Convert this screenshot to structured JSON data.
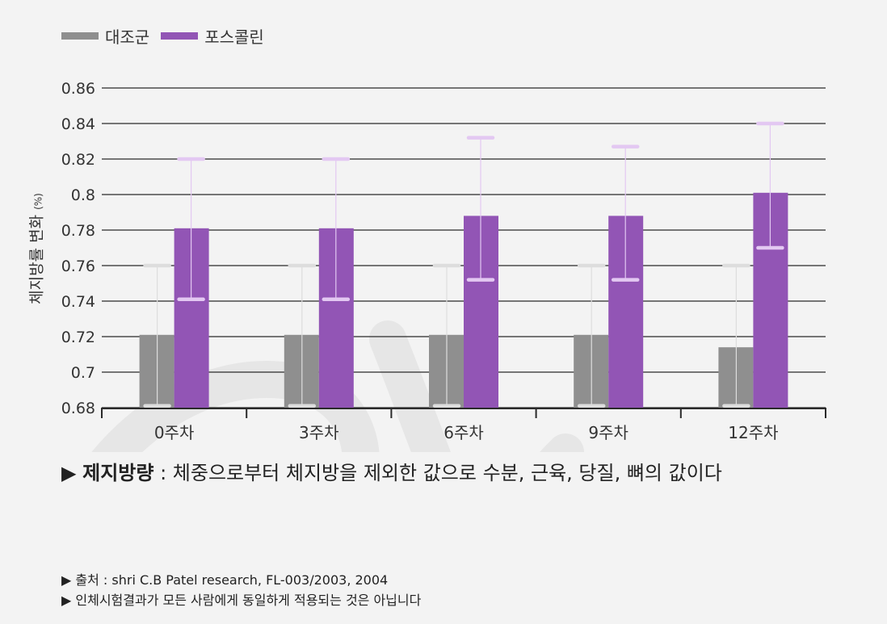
{
  "chart_data": {
    "type": "bar",
    "categories": [
      "0주차",
      "3주차",
      "6주차",
      "9주차",
      "12주차"
    ],
    "series": [
      {
        "name": "대조군",
        "color": "#8f8f8f",
        "errorColor": "#dddddd",
        "values": [
          0.721,
          0.721,
          0.721,
          0.721,
          0.714
        ],
        "error_low": [
          0.681,
          0.681,
          0.681,
          0.681,
          0.681
        ],
        "error_high": [
          0.76,
          0.76,
          0.76,
          0.76,
          0.76
        ]
      },
      {
        "name": "포스콜린",
        "color": "#9255b5",
        "errorColor": "#e3c8f2",
        "values": [
          0.781,
          0.781,
          0.788,
          0.788,
          0.801
        ],
        "error_low": [
          0.741,
          0.741,
          0.752,
          0.752,
          0.77
        ],
        "error_high": [
          0.82,
          0.82,
          0.832,
          0.827,
          0.84
        ]
      }
    ],
    "ylabel": "체지방률 변화",
    "ylabel_unit": "(%)",
    "ylim": [
      0.68,
      0.86
    ],
    "yticks": [
      0.68,
      0.7,
      0.72,
      0.74,
      0.76,
      0.78,
      0.8,
      0.82,
      0.84,
      0.86
    ],
    "ytick_labels": [
      "0.68",
      "0.7",
      "0.72",
      "0.74",
      "0.76",
      "0.78",
      "0.8",
      "0.82",
      "0.84",
      "0.86"
    ],
    "grid": true,
    "legend": "top-left"
  },
  "definition": {
    "marker": "▶",
    "term": "제지방량",
    "text": " : 체중으로부터 체지방을 제외한 값으로 수분, 근육, 당질, 뼈의 값이다"
  },
  "notes": [
    "▶ 출처 : shri C.B Patel research, FL-003/2003, 2004",
    "▶ 인체시험결과가 모든 사람에게 동일하게 적용되는 것은 아닙니다"
  ]
}
